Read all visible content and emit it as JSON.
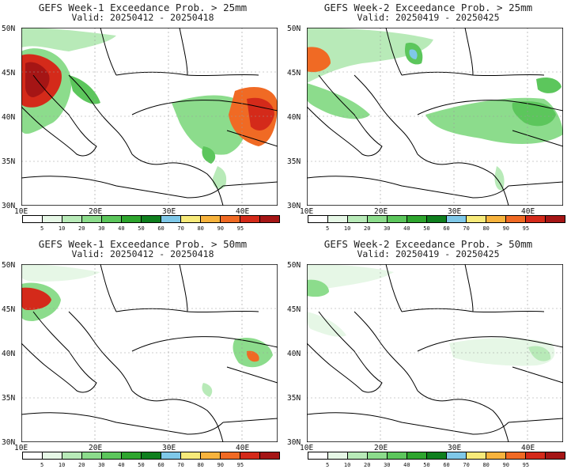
{
  "panels": [
    {
      "title": "GEFS Week-1 Exceedance Prob. > 25mm",
      "valid": "Valid: 20250412 - 20250418"
    },
    {
      "title": "GEFS Week-2 Exceedance Prob. > 25mm",
      "valid": "Valid: 20250419 - 20250425"
    },
    {
      "title": "GEFS Week-1 Exceedance Prob. > 50mm",
      "valid": "Valid: 20250412 - 20250418"
    },
    {
      "title": "GEFS Week-2 Exceedance Prob. > 50mm",
      "valid": "Valid: 20250419 - 20250425"
    }
  ],
  "lat_labels": [
    "50N",
    "45N",
    "40N",
    "35N",
    "30N"
  ],
  "lon_labels": [
    "10E",
    "20E",
    "30E",
    "40E"
  ],
  "colorbar": {
    "labels": [
      "5",
      "10",
      "20",
      "30",
      "40",
      "50",
      "60",
      "70",
      "80",
      "90",
      "95"
    ],
    "colors": [
      "#ffffff",
      "#e6f7e6",
      "#b8eab8",
      "#8cdc8c",
      "#5cc65c",
      "#2ea52e",
      "#0f7f1e",
      "#7fc8e8",
      "#f7ea7a",
      "#f7b33d",
      "#f06a24",
      "#d42a1a",
      "#a51515"
    ]
  }
}
